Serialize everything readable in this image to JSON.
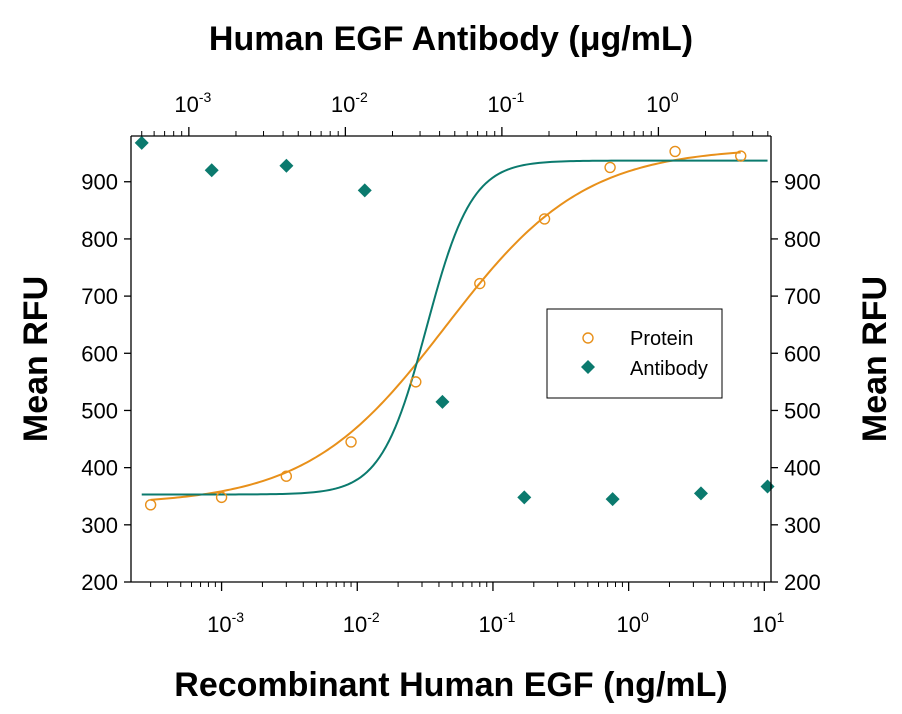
{
  "chart_data": {
    "type": "scatter",
    "top_axis_title": "Human EGF Antibody (μg/mL)",
    "xlabel": "Recombinant Human EGF (ng/mL)",
    "ylabel_left": "Mean RFU",
    "ylabel_right": "Mean RFU",
    "x_scale": "log",
    "x_top_scale": "log",
    "xlim": [
      0.000215,
      11.2
    ],
    "x_top_lim": [
      0.000427,
      5.24
    ],
    "ylim": [
      200,
      980
    ],
    "y_ticks": [
      200,
      300,
      400,
      500,
      600,
      700,
      800,
      900
    ],
    "x_ticks": [
      {
        "base": "10",
        "exp": "-3",
        "value": 0.001
      },
      {
        "base": "10",
        "exp": "-2",
        "value": 0.01
      },
      {
        "base": "10",
        "exp": "-1",
        "value": 0.1
      },
      {
        "base": "10",
        "exp": "0",
        "value": 1
      },
      {
        "base": "10",
        "exp": "1",
        "value": 10
      }
    ],
    "x_top_ticks": [
      {
        "base": "10",
        "exp": "-3",
        "value": 0.001
      },
      {
        "base": "10",
        "exp": "-2",
        "value": 0.01
      },
      {
        "base": "10",
        "exp": "-1",
        "value": 0.1
      },
      {
        "base": "10",
        "exp": "0",
        "value": 1
      }
    ],
    "legend": {
      "position": "center-right",
      "entries": [
        "Protein",
        "Antibody"
      ]
    },
    "grid": false,
    "series": [
      {
        "name": "Protein",
        "axis": "bottom",
        "marker": "open-circle",
        "color": "#E8901A",
        "x": [
          0.0003,
          0.001,
          0.003,
          0.009,
          0.027,
          0.08,
          0.24,
          0.73,
          2.2,
          6.7
        ],
        "y": [
          335,
          348,
          385,
          445,
          550,
          722,
          835,
          925,
          953,
          945
        ],
        "fit": {
          "bottom": 335,
          "top": 960,
          "ec50": 0.045,
          "hill": 0.85
        }
      },
      {
        "name": "Antibody",
        "axis": "top",
        "marker": "filled-diamond",
        "color": "#0B7A6E",
        "x": [
          0.0005,
          0.0014,
          0.0042,
          0.0133,
          0.0417,
          0.139,
          0.51,
          1.87,
          4.98
        ],
        "y": [
          968,
          920,
          928,
          885,
          515,
          348,
          345,
          355,
          367
        ],
        "fit": {
          "bottom": 353,
          "top": 937,
          "ec50": 0.033,
          "hill": 3.0
        }
      }
    ]
  }
}
